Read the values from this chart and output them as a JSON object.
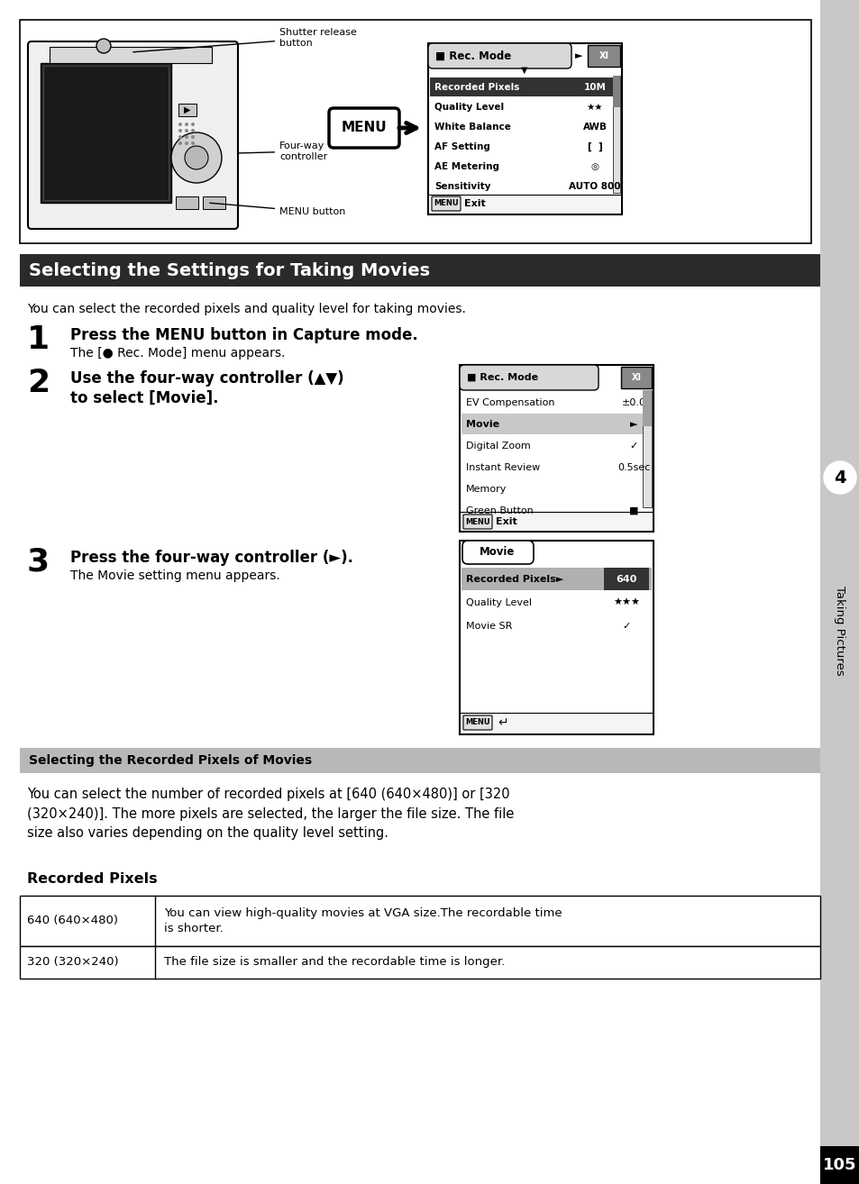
{
  "page_bg": "#ffffff",
  "sidebar_bg": "#c8c8c8",
  "page_num": "105",
  "section_title": "Selecting the Settings for Taking Movies",
  "section_title_bg": "#2a2a2a",
  "section_title_color": "#ffffff",
  "subsection_title": "Selecting the Recorded Pixels of Movies",
  "subsection_title_bg": "#b8b8b8",
  "tab4_label": "Taking Pictures",
  "intro_text": "You can select the recorded pixels and quality level for taking movies.",
  "step1_bold": "Press the MENU button in Capture mode.",
  "step1_sub": "The [● Rec. Mode] menu appears.",
  "step2_line1": "Use the four-way controller (▲▼)",
  "step2_line2": "to select [Movie].",
  "step3_bold": "Press the four-way controller (►).",
  "step3_sub": "The Movie setting menu appears.",
  "body_para": "You can select the number of recorded pixels at [640 (640×480)] or [320\n(320×240)]. The more pixels are selected, the larger the file size. The file\nsize also varies depending on the quality level setting.",
  "rec_pixels_heading": "Recorded Pixels",
  "table_row1_label": "640 (640×480)",
  "table_row1_text": "You can view high-quality movies at VGA size.The recordable time\nis shorter.",
  "table_row2_label": "320 (320×240)",
  "table_row2_text": "The file size is smaller and the recordable time is longer."
}
